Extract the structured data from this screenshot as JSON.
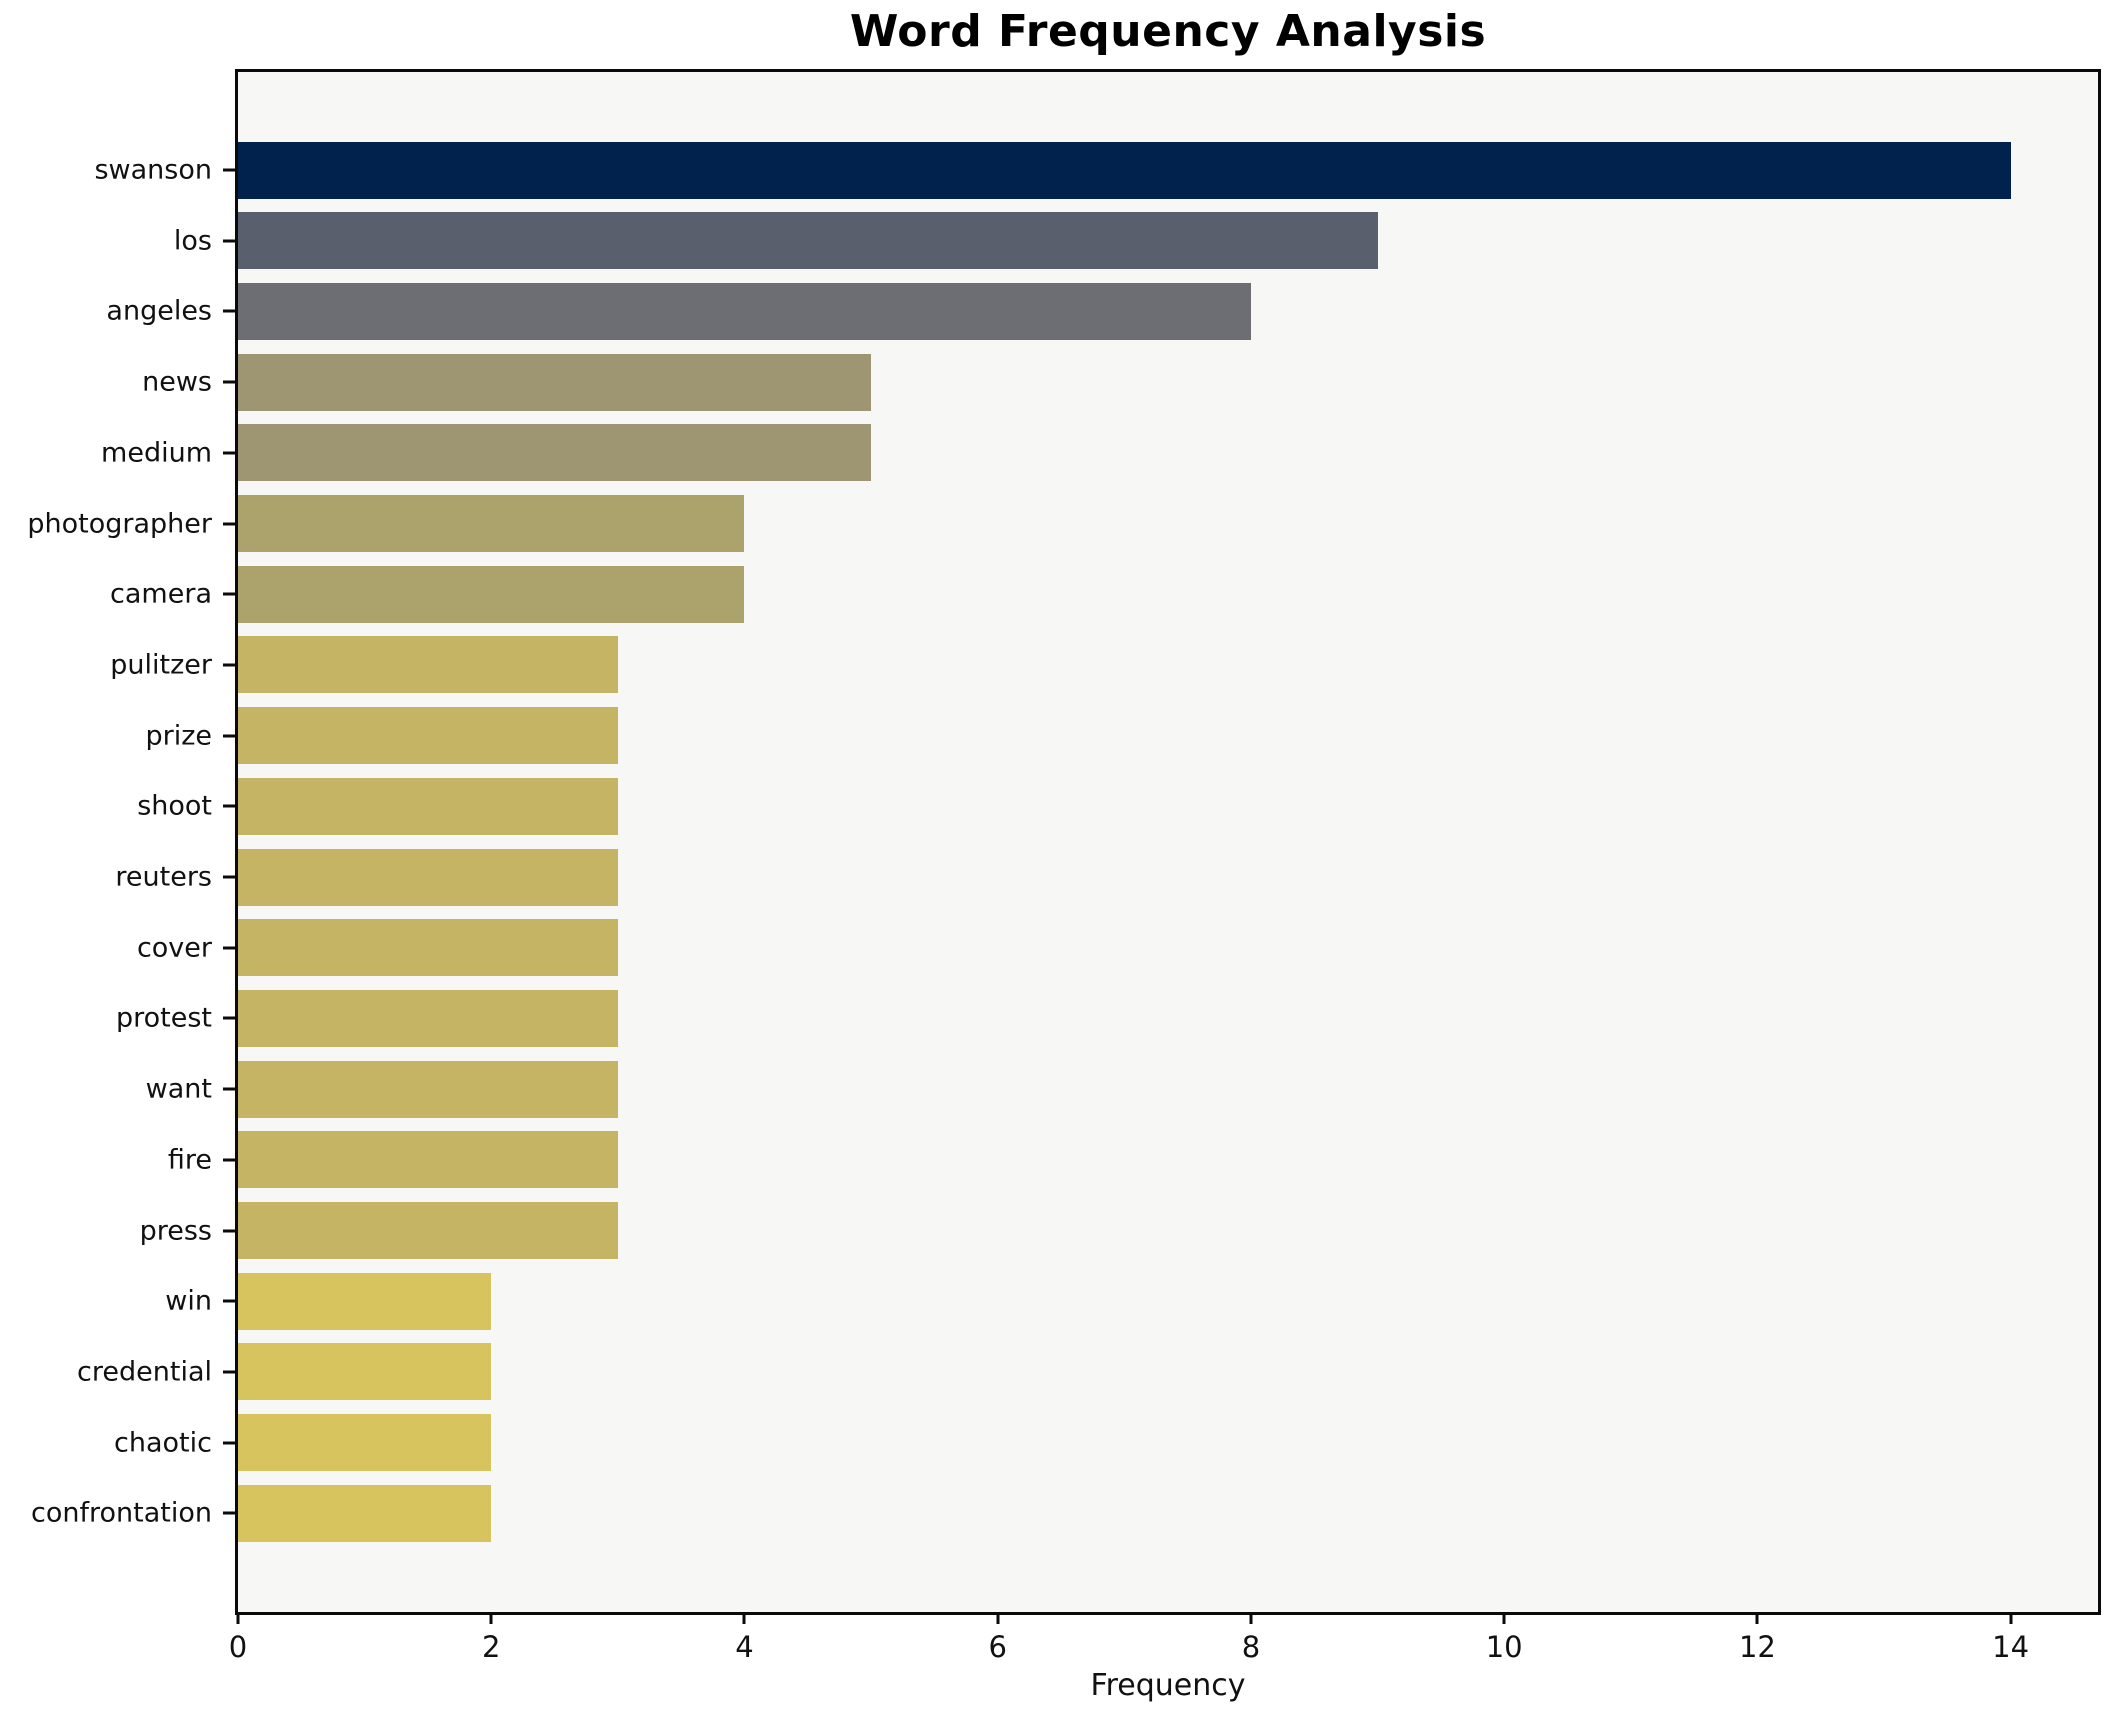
{
  "chart_data": {
    "type": "bar",
    "orientation": "horizontal",
    "title": "Word Frequency Analysis",
    "xlabel": "Frequency",
    "ylabel": "",
    "xlim": [
      0,
      14.69
    ],
    "x_ticks": [
      0,
      2,
      4,
      6,
      8,
      10,
      12,
      14
    ],
    "grid": false,
    "legend": "none",
    "plot_background": "#f7f7f6",
    "figure_background": "#ffffff",
    "spine_color": "#0a0a0a",
    "categories": [
      "swanson",
      "los",
      "angeles",
      "news",
      "medium",
      "photographer",
      "camera",
      "pulitzer",
      "prize",
      "shoot",
      "reuters",
      "cover",
      "protest",
      "want",
      "fire",
      "press",
      "win",
      "credential",
      "chaotic",
      "confrontation"
    ],
    "values": [
      14,
      9,
      8,
      5,
      5,
      4,
      4,
      3,
      3,
      3,
      3,
      3,
      3,
      3,
      3,
      3,
      2,
      2,
      2,
      2
    ],
    "bar_colors": [
      "#02224e",
      "#5a5f6d",
      "#6c6e73",
      "#9e9673",
      "#9e9673",
      "#aca36c",
      "#aca36c",
      "#c4b464",
      "#c4b464",
      "#c4b464",
      "#c4b464",
      "#c4b464",
      "#c4b464",
      "#c4b464",
      "#c4b464",
      "#c4b464",
      "#d7c45e",
      "#d7c45e",
      "#d7c45e",
      "#d7c45e"
    ]
  }
}
